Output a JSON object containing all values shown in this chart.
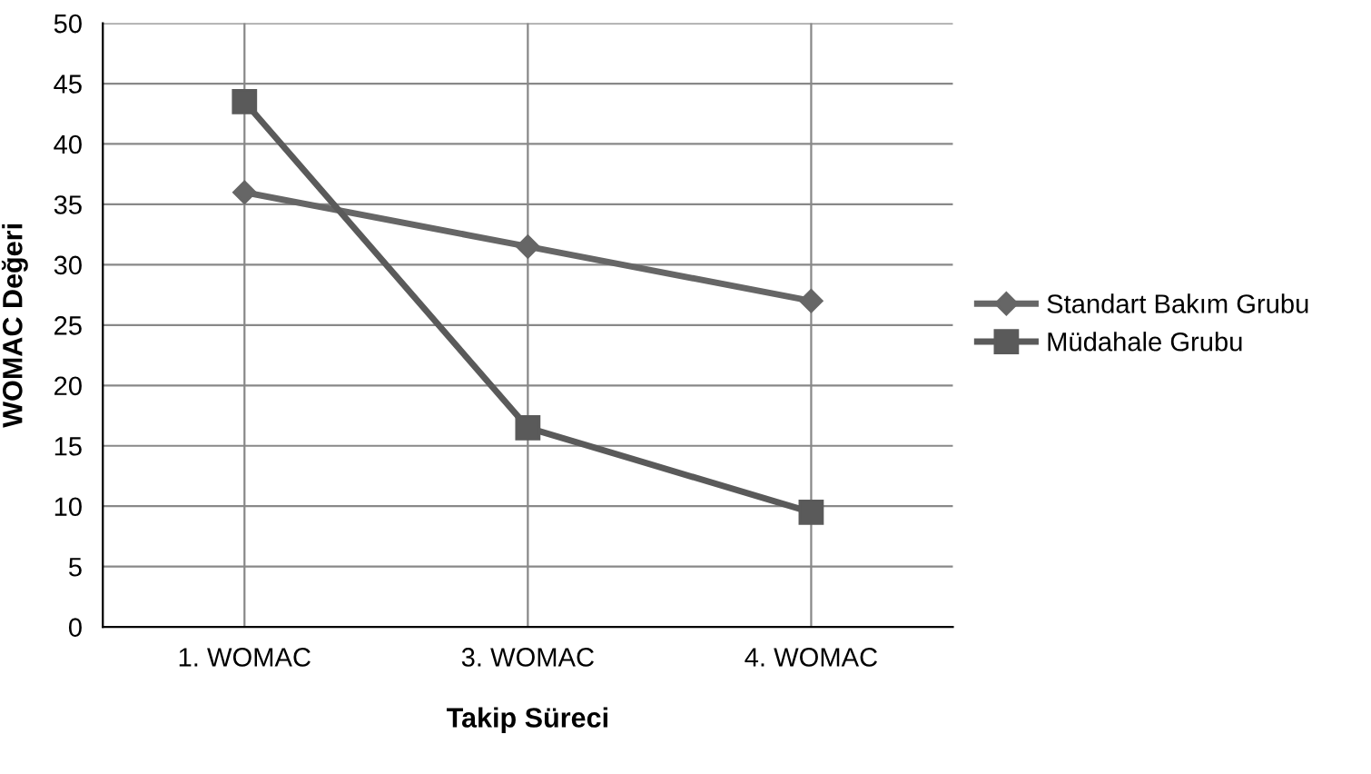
{
  "chart_data": {
    "type": "line",
    "xlabel": "Takip Süreci",
    "ylabel": "WOMAC Değeri",
    "categories": [
      "1. WOMAC",
      "3. WOMAC",
      "4. WOMAC"
    ],
    "series": [
      {
        "name": "Standart Bakım Grubu",
        "color": "#666666",
        "marker": "diamond",
        "values": [
          36,
          31.5,
          27
        ]
      },
      {
        "name": "Müdahale Grubu",
        "color": "#5a5a5a",
        "marker": "square",
        "values": [
          43.5,
          16.5,
          9.5
        ]
      }
    ],
    "ylim": [
      0,
      50
    ],
    "yticks": [
      0,
      5,
      10,
      15,
      20,
      25,
      30,
      35,
      40,
      45,
      50
    ],
    "grid": true,
    "legend": "right",
    "line_style": "solid"
  }
}
